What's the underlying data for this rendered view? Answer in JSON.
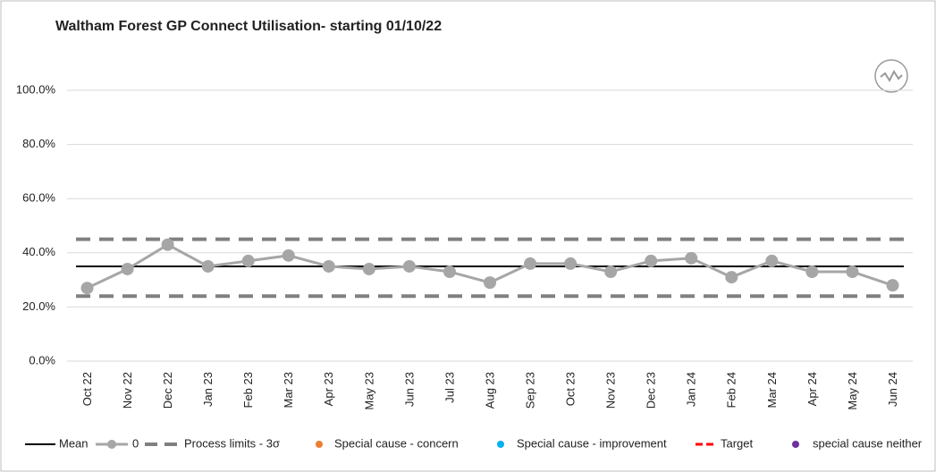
{
  "chart_data": {
    "type": "line",
    "title": "Waltham Forest GP Connect Utilisation- starting 01/10/22",
    "categories": [
      "Oct 22",
      "Nov 22",
      "Dec 22",
      "Jan 23",
      "Feb 23",
      "Mar 23",
      "Apr 23",
      "May 23",
      "Jun 23",
      "Jul 23",
      "Aug 23",
      "Sep 23",
      "Oct 23",
      "Nov 23",
      "Dec 23",
      "Jan 24",
      "Feb 24",
      "Mar 24",
      "Apr 24",
      "May 24",
      "Jun 24"
    ],
    "series": [
      {
        "name": "0",
        "color": "#a6a6a6",
        "values": [
          27,
          34,
          43,
          35,
          37,
          39,
          35,
          34,
          35,
          33,
          29,
          36,
          36,
          33,
          37,
          38,
          31,
          37,
          33,
          33,
          28
        ]
      }
    ],
    "mean": {
      "name": "Mean",
      "color": "#000000",
      "value": 35
    },
    "process_limits": {
      "name": "Process limits - 3σ",
      "color": "#808080",
      "upper": 45,
      "lower": 24
    },
    "legend_items": [
      {
        "name": "Special cause - concern",
        "color": "#ed7d31"
      },
      {
        "name": "Special cause  - improvement",
        "color": "#00b0f0"
      },
      {
        "name": "Target",
        "color": "#ff0000"
      },
      {
        "name": "special cause neither",
        "color": "#7030a0"
      }
    ],
    "ylim": [
      0,
      100
    ],
    "yticks": [
      {
        "value": 0,
        "label": "0.0%"
      },
      {
        "value": 20,
        "label": "20.0%"
      },
      {
        "value": 40,
        "label": "40.0%"
      },
      {
        "value": 60,
        "label": "60.0%"
      },
      {
        "value": 80,
        "label": "80.0%"
      },
      {
        "value": 100,
        "label": "100.0%"
      }
    ],
    "grid": true
  }
}
